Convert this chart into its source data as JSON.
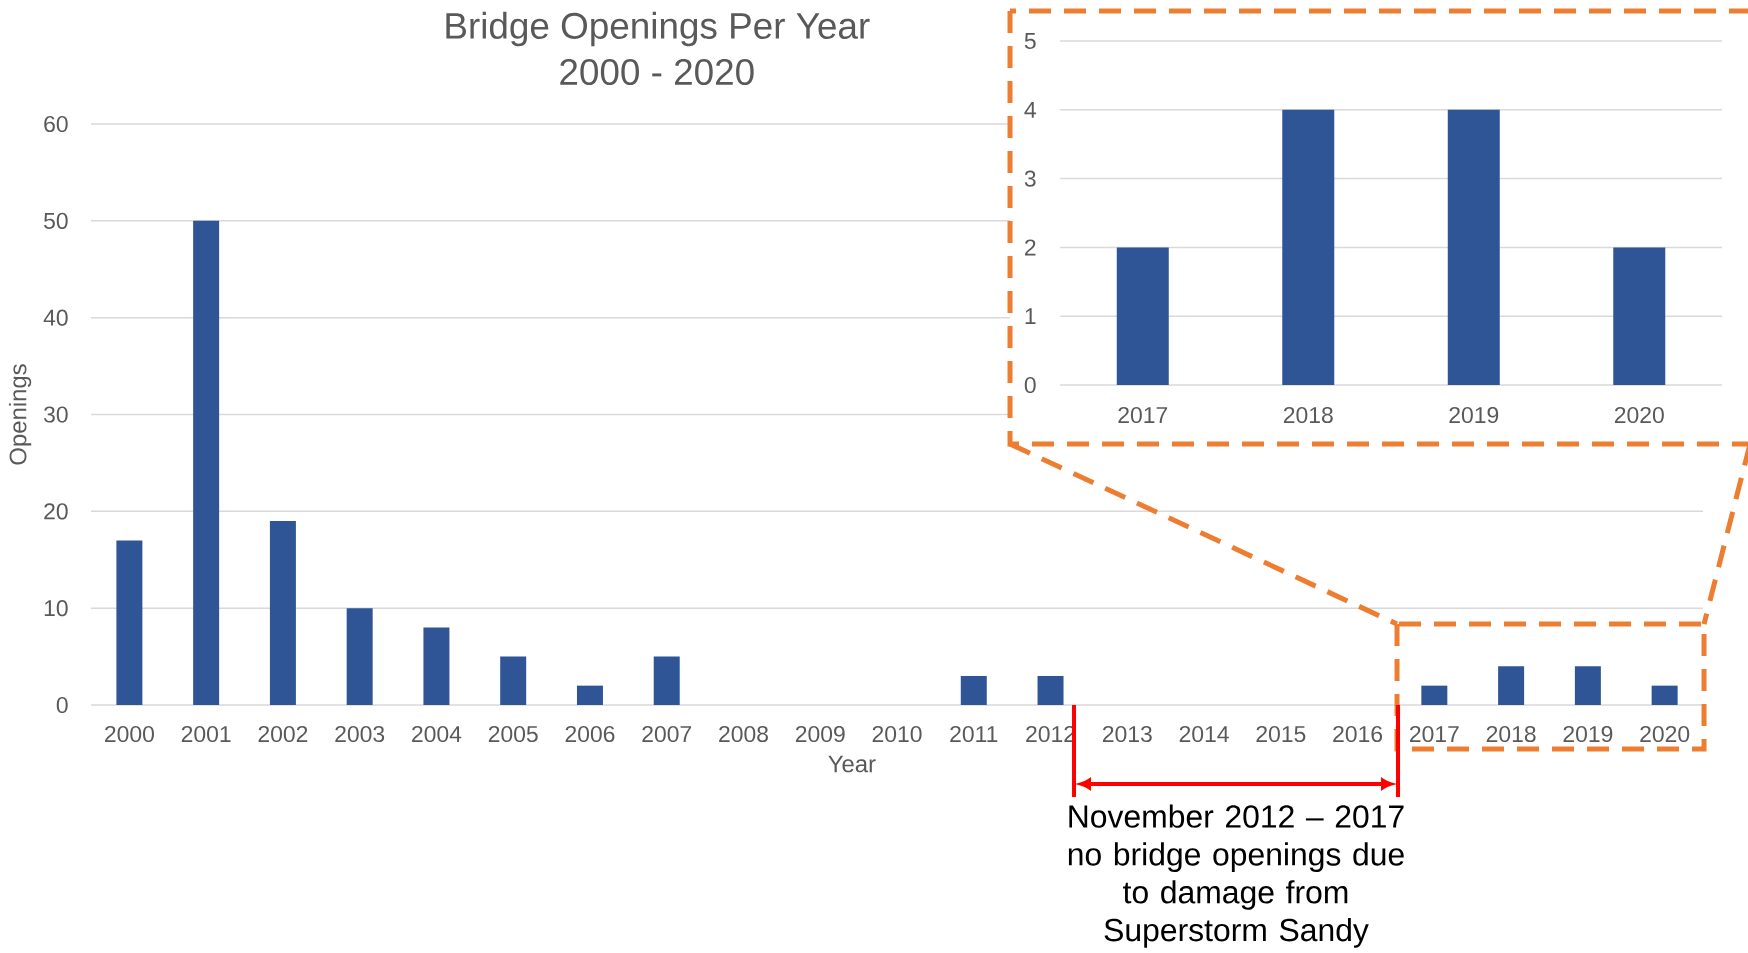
{
  "chart_data": [
    {
      "type": "bar",
      "title": "Bridge Openings Per Year",
      "subtitle": "2000 - 2020",
      "xlabel": "Year",
      "ylabel": "Openings",
      "categories": [
        "2000",
        "2001",
        "2002",
        "2003",
        "2004",
        "2005",
        "2006",
        "2007",
        "2008",
        "2009",
        "2010",
        "2011",
        "2012",
        "2013",
        "2014",
        "2015",
        "2016",
        "2017",
        "2018",
        "2019",
        "2020"
      ],
      "values": [
        17,
        50,
        19,
        10,
        8,
        5,
        2,
        5,
        0,
        0,
        0,
        3,
        3,
        0,
        0,
        0,
        0,
        2,
        4,
        4,
        2
      ],
      "color": "#2f5597",
      "ylim": [
        0,
        60
      ],
      "yticks": [
        0,
        10,
        20,
        30,
        40,
        50,
        60
      ],
      "grid": "y",
      "annotations": [
        "November 2012 – 2017\nno bridge openings due\nto damage from\nSuperstorm Sandy"
      ]
    },
    {
      "type": "bar",
      "categories": [
        "2017",
        "2018",
        "2019",
        "2020"
      ],
      "values": [
        2,
        4,
        4,
        2
      ],
      "color": "#2f5597",
      "ylim": [
        0,
        5
      ],
      "yticks": [
        0,
        1,
        2,
        3,
        4,
        5
      ],
      "grid": "y"
    }
  ]
}
